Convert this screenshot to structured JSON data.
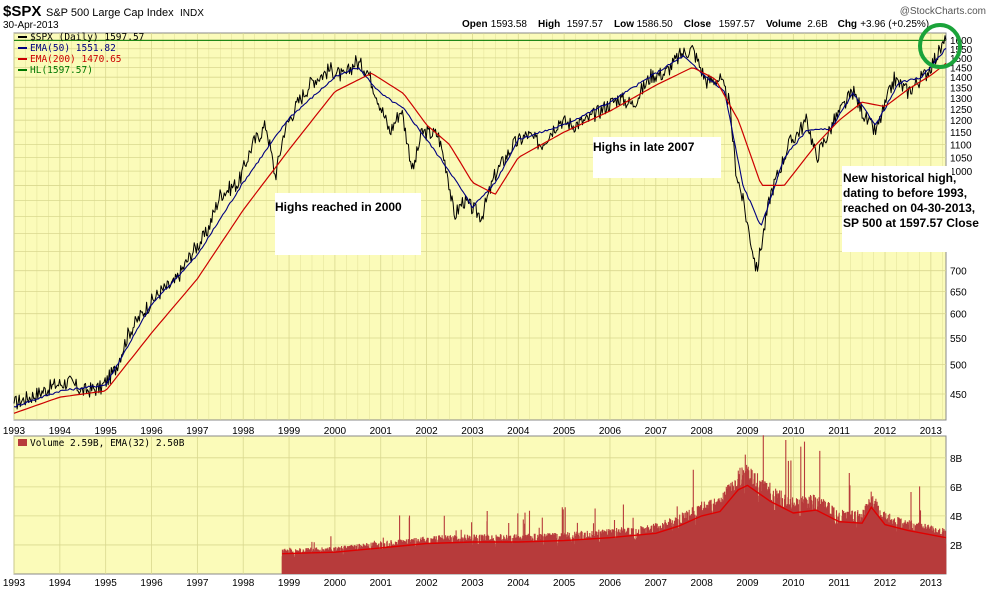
{
  "header": {
    "symbol": "$SPX",
    "name": "S&P 500 Large Cap Index",
    "exchange": "INDX",
    "date": "30-Apr-2013",
    "watermark": "@StockCharts.com",
    "quote": [
      {
        "label": "Open",
        "value": "1593.58"
      },
      {
        "label": "High",
        "value": "1597.57"
      },
      {
        "label": "Low",
        "value": "1586.50"
      },
      {
        "label": "Close",
        "value": "1597.57"
      },
      {
        "label": "Volume",
        "value": "2.6B"
      },
      {
        "label": "Chg",
        "value": "+3.96 (+0.25%)"
      }
    ]
  },
  "colors": {
    "panel_bg": "#fbfbb9",
    "grid": "#d9d88f",
    "price_line": "#000000",
    "ema50": "#000080",
    "ema200": "#cc0000",
    "hl_line": "#007700",
    "volume_fill": "#b73b3b",
    "volume_ema": "#e00000",
    "highlight_circle": "#1aa33a"
  },
  "chart_data": [
    {
      "type": "line",
      "title": "$SPX (Daily) 1597.57",
      "legend": [
        {
          "name": "$SPX (Daily) 1597.57",
          "color": "#000000"
        },
        {
          "name": "EMA(50) 1551.82",
          "color": "#000080"
        },
        {
          "name": "EMA(200) 1470.65",
          "color": "#cc0000"
        },
        {
          "name": "HL(1597.57)",
          "color": "#007700"
        }
      ],
      "legend_position": "top-left",
      "y_scale": "log",
      "ylim": [
        410,
        1640
      ],
      "xlim": [
        1993.0,
        2013.33
      ],
      "y_ticks": [
        450,
        500,
        550,
        600,
        650,
        700,
        750,
        800,
        850,
        900,
        950,
        1000,
        1050,
        1100,
        1150,
        1200,
        1250,
        1300,
        1350,
        1400,
        1450,
        1500,
        1550,
        1600
      ],
      "y_tick_labels_visible": [
        "450",
        "500",
        "550",
        "600",
        "650",
        "700",
        "1000",
        "1050",
        "1100",
        "1150",
        "1200",
        "1250",
        "1300",
        "1350",
        "1400",
        "1450",
        "1500",
        "1550",
        "1600"
      ],
      "x_tick_labels": [
        "1993",
        "1994",
        "1995",
        "1996",
        "1997",
        "1998",
        "1999",
        "2000",
        "2001",
        "2002",
        "2003",
        "2004",
        "2005",
        "2006",
        "2007",
        "2008",
        "2009",
        "2010",
        "2011",
        "2012",
        "2013"
      ],
      "grid": true,
      "hl_level": 1597.57,
      "series": [
        {
          "name": "$SPX (Daily) 1597.57",
          "x": [
            1993.0,
            1993.5,
            1993.9,
            1994.2,
            1994.5,
            1994.9,
            1995.2,
            1995.5,
            1995.9,
            1996.2,
            1996.5,
            1996.9,
            1997.2,
            1997.5,
            1997.9,
            1998.2,
            1998.5,
            1998.7,
            1998.9,
            1999.2,
            1999.5,
            1999.9,
            2000.2,
            2000.45,
            2000.7,
            2000.9,
            2001.2,
            2001.45,
            2001.7,
            2001.9,
            2002.25,
            2002.45,
            2002.6,
            2002.8,
            2003.2,
            2003.5,
            2003.9,
            2004.2,
            2004.5,
            2004.9,
            2005.2,
            2005.5,
            2005.9,
            2006.2,
            2006.5,
            2006.9,
            2007.2,
            2007.55,
            2007.8,
            2008.1,
            2008.4,
            2008.6,
            2008.75,
            2008.9,
            2009.2,
            2009.5,
            2009.9,
            2010.3,
            2010.5,
            2010.9,
            2011.3,
            2011.6,
            2011.8,
            2012.2,
            2012.5,
            2012.9,
            2013.1,
            2013.33
          ],
          "values": [
            435,
            450,
            465,
            470,
            455,
            460,
            490,
            560,
            615,
            650,
            670,
            750,
            800,
            920,
            960,
            1100,
            1180,
            980,
            1160,
            1280,
            1380,
            1440,
            1400,
            1480,
            1440,
            1320,
            1150,
            1250,
            1000,
            1150,
            1140,
            1000,
            850,
            900,
            850,
            990,
            1100,
            1140,
            1100,
            1200,
            1180,
            1200,
            1260,
            1300,
            1270,
            1410,
            1420,
            1520,
            1550,
            1380,
            1390,
            1280,
            1000,
            900,
            700,
            920,
            1100,
            1200,
            1050,
            1200,
            1330,
            1200,
            1150,
            1390,
            1330,
            1420,
            1500,
            1597.57
          ]
        },
        {
          "name": "EMA(50) 1551.82",
          "x": [
            1993.0,
            1994.0,
            1995.0,
            1996.0,
            1997.0,
            1998.0,
            1999.0,
            2000.0,
            2000.5,
            2001.0,
            2001.5,
            2002.0,
            2002.5,
            2003.0,
            2003.5,
            2004.0,
            2005.0,
            2006.0,
            2007.0,
            2007.6,
            2008.0,
            2008.5,
            2008.9,
            2009.3,
            2009.8,
            2010.3,
            2010.8,
            2011.3,
            2011.8,
            2012.3,
            2012.8,
            2013.33
          ],
          "values": [
            430,
            455,
            465,
            620,
            740,
            960,
            1210,
            1400,
            1450,
            1320,
            1250,
            1120,
            1000,
            880,
            960,
            1120,
            1180,
            1280,
            1420,
            1510,
            1420,
            1330,
            950,
            820,
            1050,
            1160,
            1160,
            1320,
            1180,
            1370,
            1400,
            1551.82
          ]
        },
        {
          "name": "EMA(200) 1470.65",
          "x": [
            1993.0,
            1994.0,
            1995.0,
            1996.0,
            1997.0,
            1998.0,
            1999.0,
            2000.0,
            2000.8,
            2001.5,
            2002.0,
            2002.5,
            2003.0,
            2003.5,
            2004.0,
            2005.0,
            2006.0,
            2007.0,
            2007.8,
            2008.3,
            2008.8,
            2009.3,
            2009.8,
            2010.5,
            2011.0,
            2011.5,
            2012.0,
            2012.5,
            2013.0,
            2013.33
          ],
          "values": [
            420,
            445,
            455,
            560,
            680,
            870,
            1080,
            1330,
            1420,
            1320,
            1180,
            1100,
            960,
            920,
            1050,
            1150,
            1240,
            1360,
            1450,
            1390,
            1200,
            950,
            950,
            1100,
            1200,
            1280,
            1260,
            1340,
            1410,
            1470.65
          ]
        }
      ]
    },
    {
      "type": "bar",
      "title": "Volume 2.59B, EMA(32) 2.50B",
      "legend": [
        {
          "name": "Volume 2.59B",
          "color": "#b73b3b"
        },
        {
          "name": "EMA(32) 2.50B",
          "color": "#e00000"
        }
      ],
      "unit": "billions",
      "ylim": [
        0,
        9.5
      ],
      "y_tick_labels": [
        "2B",
        "4B",
        "6B",
        "8B"
      ],
      "x_tick_labels": [
        "1993",
        "1994",
        "1995",
        "1996",
        "1997",
        "1998",
        "1999",
        "2000",
        "2001",
        "2002",
        "2003",
        "2004",
        "2005",
        "2006",
        "2007",
        "2008",
        "2009",
        "2010",
        "2011",
        "2012",
        "2013"
      ],
      "grid": true,
      "volume_start_year": 1998.85,
      "ema_profile": {
        "x": [
          1998.85,
          2000.0,
          2001.0,
          2002.0,
          2003.0,
          2004.0,
          2005.0,
          2006.0,
          2007.0,
          2007.5,
          2008.0,
          2008.4,
          2008.8,
          2009.0,
          2009.5,
          2010.0,
          2010.5,
          2011.0,
          2011.5,
          2011.7,
          2012.0,
          2012.5,
          2013.0,
          2013.33
        ],
        "values": [
          1.4,
          1.5,
          1.8,
          2.1,
          2.2,
          2.2,
          2.3,
          2.5,
          2.8,
          3.3,
          4.0,
          4.3,
          5.8,
          6.1,
          5.0,
          4.2,
          4.4,
          3.6,
          3.5,
          4.6,
          3.4,
          3.0,
          2.7,
          2.5
        ]
      }
    }
  ],
  "annotations": [
    {
      "text": "Highs reached in 2000"
    },
    {
      "text": "Highs in late 2007"
    },
    {
      "text": "New historical high,\ndating to before 1993,\nreached on 04-30-2013,\nSP 500 at 1597.57 Close"
    }
  ]
}
